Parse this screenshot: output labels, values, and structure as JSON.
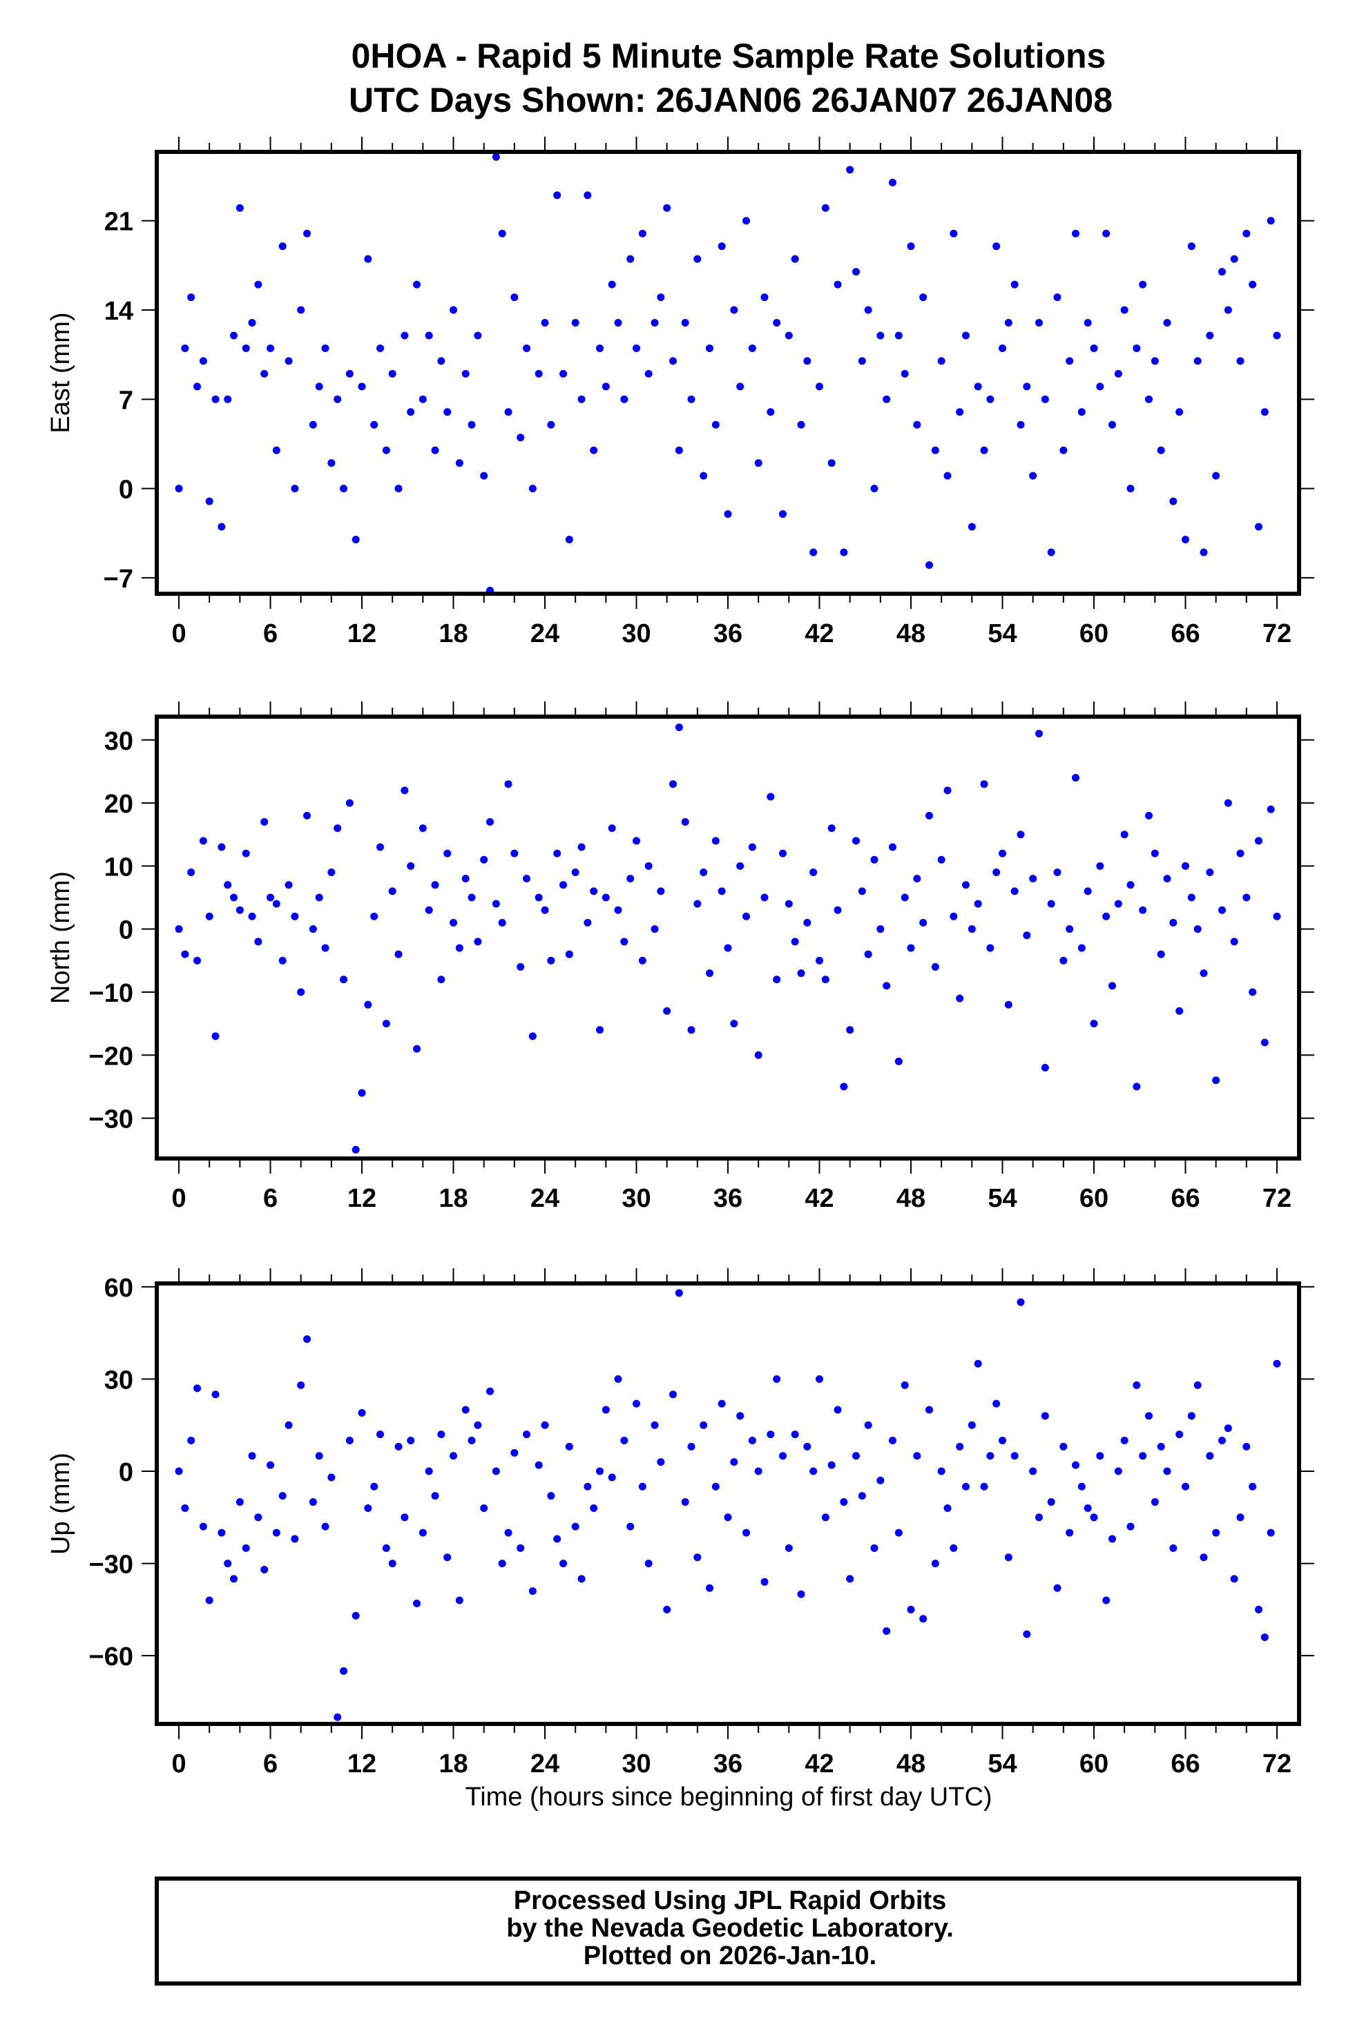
{
  "title_line1": "0HOA - Rapid 5 Minute Sample Rate Solutions",
  "title_line2": "UTC Days Shown:  26JAN06 26JAN07 26JAN08",
  "footer": {
    "line1": "Processed Using JPL Rapid Orbits",
    "line2": "by the Nevada Geodetic Laboratory.",
    "line3": "Plotted on 2026-Jan-10."
  },
  "colors": {
    "points": "#0000ff",
    "frame": "#000000"
  },
  "chart_data": [
    {
      "type": "scatter",
      "ylabel": "East (mm)",
      "xlabel": "",
      "xlim": [
        -1.45,
        73.45
      ],
      "ylim": [
        -8.25,
        26.4
      ],
      "xticks": [
        0,
        6,
        12,
        18,
        24,
        30,
        36,
        42,
        48,
        54,
        60,
        66,
        72
      ],
      "yticks": [
        -7,
        0,
        7,
        14,
        21
      ],
      "x_start": 0,
      "x_step": 0.4,
      "values": [
        0,
        11,
        15,
        8,
        10,
        -1,
        7,
        -3,
        7,
        12,
        22,
        11,
        13,
        16,
        9,
        11,
        3,
        19,
        10,
        0,
        14,
        20,
        5,
        8,
        11,
        2,
        7,
        0,
        9,
        -4,
        8,
        18,
        5,
        11,
        3,
        9,
        0,
        12,
        6,
        16,
        7,
        12,
        3,
        10,
        6,
        14,
        2,
        9,
        5,
        12,
        1,
        -8,
        26,
        20,
        6,
        15,
        4,
        11,
        0,
        9,
        13,
        5,
        23,
        9,
        -4,
        13,
        7,
        23,
        3,
        11,
        8,
        16,
        13,
        7,
        18,
        11,
        20,
        9,
        13,
        15,
        22,
        10,
        3,
        13,
        7,
        18,
        1,
        11,
        5,
        19,
        -2,
        14,
        8,
        21,
        11,
        2,
        15,
        6,
        13,
        -2,
        12,
        18,
        5,
        10,
        -5,
        8,
        22,
        2,
        16,
        -5,
        25,
        17,
        10,
        14,
        0,
        12,
        7,
        24,
        12,
        9,
        19,
        5,
        15,
        -6,
        3,
        10,
        1,
        20,
        6,
        12,
        -3,
        8,
        3,
        7,
        19,
        11,
        13,
        16,
        5,
        8,
        1,
        13,
        7,
        -5,
        15,
        3,
        10,
        20,
        6,
        13,
        11,
        8,
        20,
        5,
        9,
        14,
        0,
        11,
        16,
        7,
        10,
        3,
        13,
        -1,
        6,
        -4,
        19,
        10,
        -5,
        12,
        1,
        17,
        14,
        18,
        10,
        20,
        16,
        -3,
        6,
        21,
        12
      ]
    },
    {
      "type": "scatter",
      "ylabel": "North (mm)",
      "xlabel": "",
      "xlim": [
        -1.45,
        73.45
      ],
      "ylim": [
        -36.4,
        33.7
      ],
      "xticks": [
        0,
        6,
        12,
        18,
        24,
        30,
        36,
        42,
        48,
        54,
        60,
        66,
        72
      ],
      "yticks": [
        -30,
        -20,
        -10,
        0,
        10,
        20,
        30
      ],
      "x_start": 0,
      "x_step": 0.4,
      "values": [
        0,
        -4,
        9,
        -5,
        14,
        2,
        -17,
        13,
        7,
        5,
        3,
        12,
        2,
        -2,
        17,
        5,
        4,
        -5,
        7,
        2,
        -10,
        18,
        0,
        5,
        -3,
        9,
        16,
        -8,
        20,
        -35,
        -26,
        -12,
        2,
        13,
        -15,
        6,
        -4,
        22,
        10,
        -19,
        16,
        3,
        7,
        -8,
        12,
        1,
        -3,
        8,
        5,
        -2,
        11,
        17,
        4,
        1,
        23,
        12,
        -6,
        8,
        -17,
        5,
        3,
        -5,
        12,
        7,
        -4,
        9,
        13,
        1,
        6,
        -16,
        5,
        16,
        3,
        -2,
        8,
        14,
        -5,
        10,
        0,
        6,
        -13,
        23,
        32,
        17,
        -16,
        4,
        9,
        -7,
        14,
        6,
        -3,
        -15,
        10,
        2,
        13,
        -20,
        5,
        21,
        -8,
        12,
        4,
        -2,
        -7,
        1,
        9,
        -5,
        -8,
        16,
        3,
        -25,
        -16,
        14,
        6,
        -4,
        11,
        0,
        -9,
        13,
        -21,
        5,
        -3,
        8,
        1,
        18,
        -6,
        11,
        22,
        2,
        -11,
        7,
        0,
        4,
        23,
        -3,
        9,
        12,
        -12,
        6,
        15,
        -1,
        8,
        31,
        -22,
        4,
        9,
        -5,
        0,
        24,
        -3,
        6,
        -15,
        10,
        2,
        -9,
        4,
        15,
        7,
        -25,
        3,
        18,
        12,
        -4,
        8,
        1,
        -13,
        10,
        5,
        0,
        -7,
        9,
        -24,
        3,
        20,
        -2,
        12,
        5,
        -10,
        14,
        -18,
        19,
        2
      ]
    },
    {
      "type": "scatter",
      "ylabel": "Up (mm)",
      "xlabel": "Time (hours since beginning of first day UTC)",
      "xlim": [
        -1.45,
        73.45
      ],
      "ylim": [
        -82.2,
        61.1
      ],
      "xticks": [
        0,
        6,
        12,
        18,
        24,
        30,
        36,
        42,
        48,
        54,
        60,
        66,
        72
      ],
      "yticks": [
        -60,
        -30,
        0,
        30,
        60
      ],
      "x_start": 0,
      "x_step": 0.4,
      "values": [
        0,
        -12,
        10,
        27,
        -18,
        -42,
        25,
        -20,
        -30,
        -35,
        -10,
        -25,
        5,
        -15,
        -32,
        2,
        -20,
        -8,
        15,
        -22,
        28,
        43,
        -10,
        5,
        -18,
        -2,
        -80,
        -65,
        10,
        -47,
        19,
        -12,
        -5,
        12,
        -25,
        -30,
        8,
        -15,
        10,
        -43,
        -20,
        0,
        -8,
        12,
        -28,
        5,
        -42,
        20,
        10,
        15,
        -12,
        26,
        0,
        -30,
        -20,
        6,
        -25,
        12,
        -39,
        2,
        15,
        -8,
        -22,
        -30,
        8,
        -18,
        -35,
        -5,
        -12,
        0,
        20,
        -2,
        30,
        10,
        -18,
        22,
        -5,
        -30,
        15,
        3,
        -45,
        25,
        58,
        -10,
        8,
        -28,
        15,
        -38,
        -5,
        22,
        -15,
        3,
        18,
        -20,
        10,
        0,
        -36,
        12,
        30,
        5,
        -25,
        12,
        -40,
        8,
        0,
        30,
        -15,
        2,
        20,
        -10,
        -35,
        5,
        -8,
        15,
        -25,
        -3,
        -52,
        10,
        -20,
        28,
        -45,
        5,
        -48,
        20,
        -30,
        0,
        -12,
        -25,
        8,
        -5,
        15,
        35,
        -5,
        5,
        22,
        10,
        -28,
        5,
        55,
        -53,
        0,
        -15,
        18,
        -10,
        -38,
        8,
        -20,
        2,
        -5,
        -12,
        -15,
        5,
        -42,
        -22,
        0,
        10,
        -18,
        28,
        5,
        18,
        -10,
        8,
        0,
        -25,
        12,
        -5,
        18,
        28,
        -28,
        5,
        -20,
        10,
        14,
        -35,
        -15,
        8,
        -5,
        -45,
        -54,
        -20,
        35
      ]
    }
  ]
}
